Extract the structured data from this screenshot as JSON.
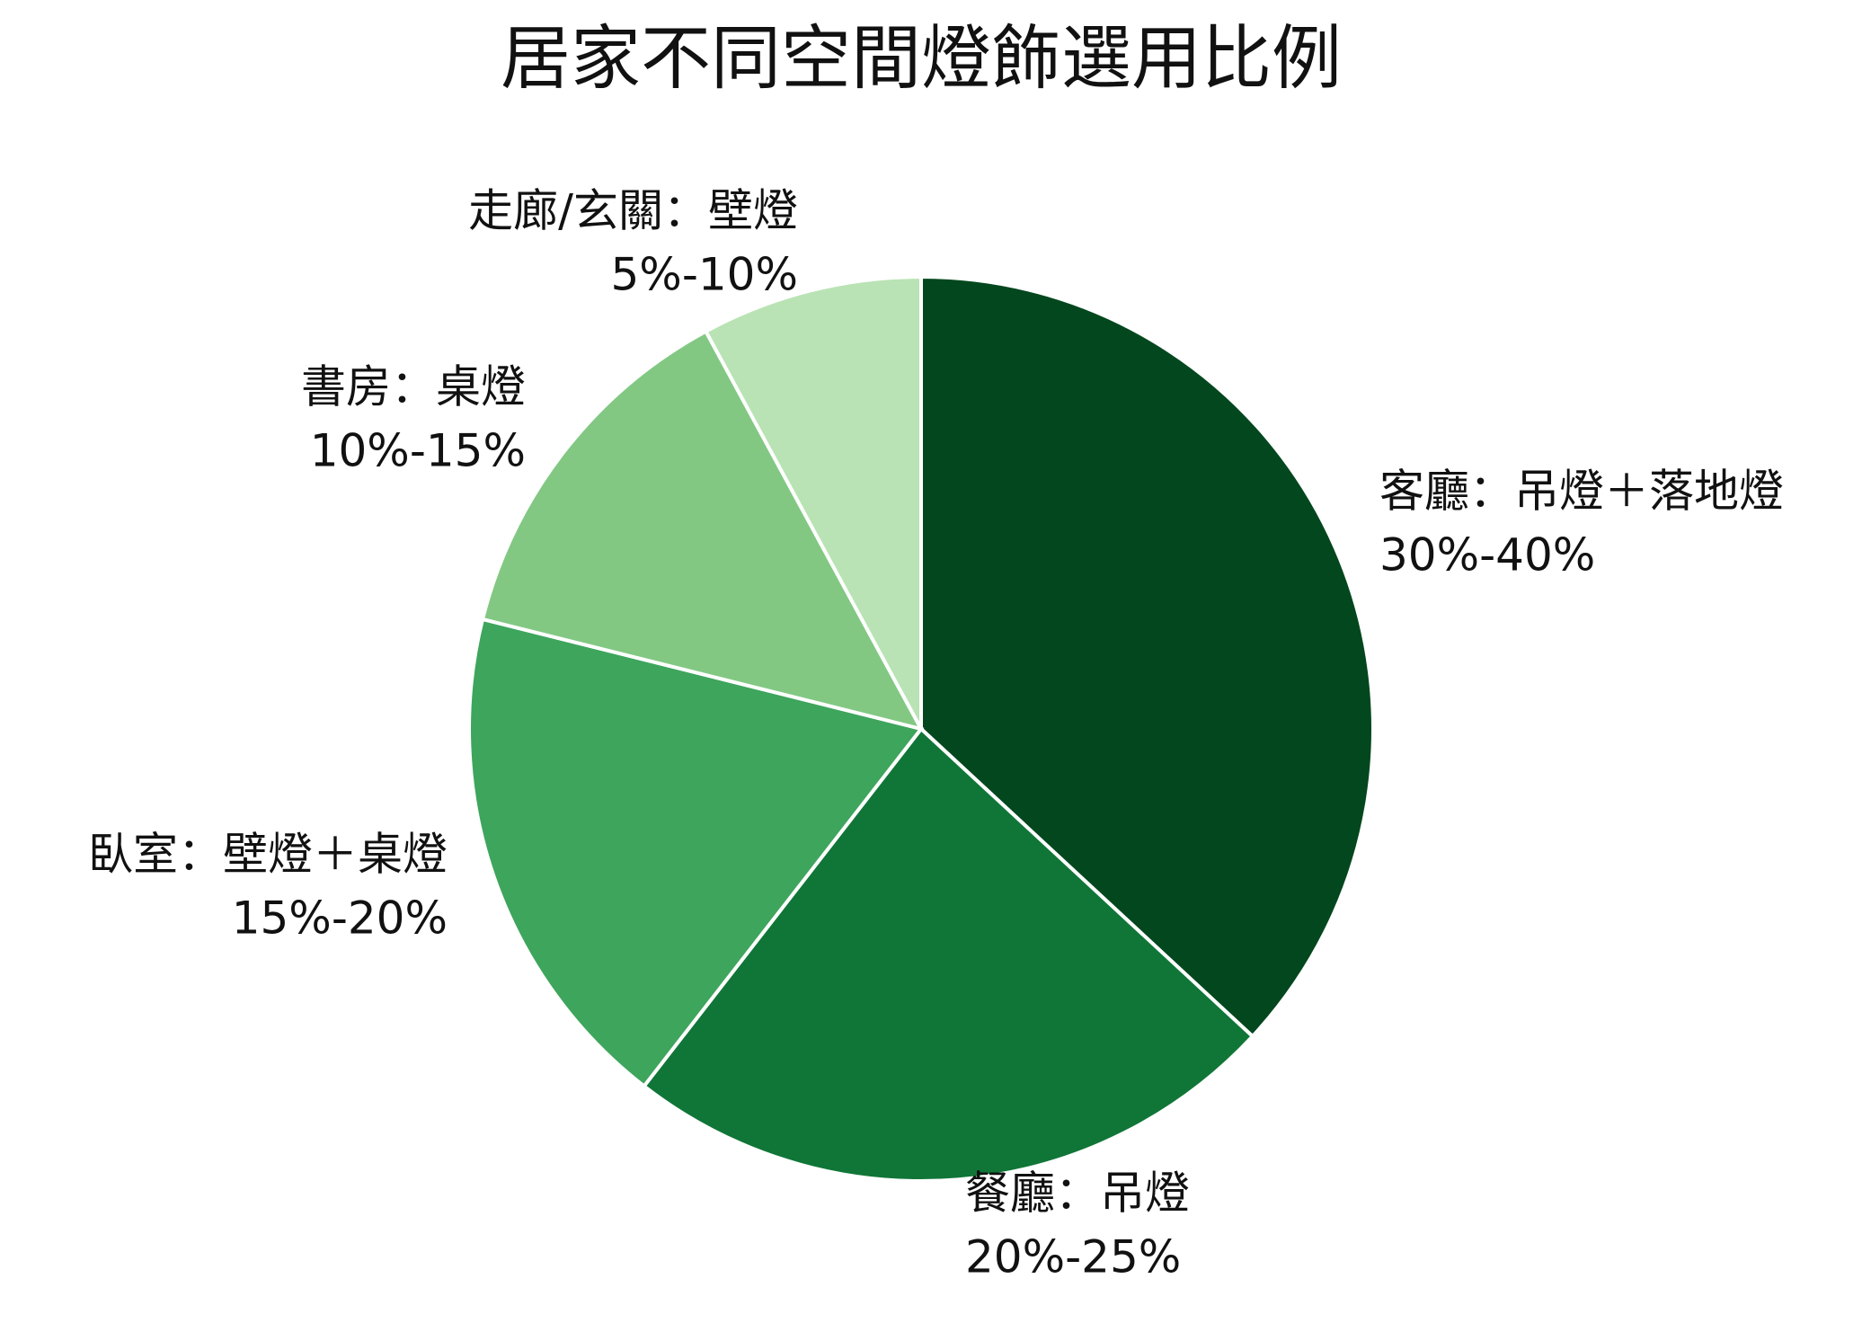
{
  "chart_data": {
    "type": "pie",
    "title": "居家不同空間燈飾選用比例",
    "categories": [
      "客廳：吊燈＋落地燈",
      "餐廳：吊燈",
      "臥室：壁燈＋桌燈",
      "書房：桌燈",
      "走廊/玄關：壁燈"
    ],
    "ranges": [
      "30%-40%",
      "20%-25%",
      "15%-20%",
      "10%-15%",
      "5%-10%"
    ],
    "values": [
      36.9,
      23.6,
      18.4,
      13.2,
      7.9
    ],
    "colors": [
      "#03471e",
      "#107637",
      "#3ea55c",
      "#82c883",
      "#b9e3b4"
    ]
  }
}
